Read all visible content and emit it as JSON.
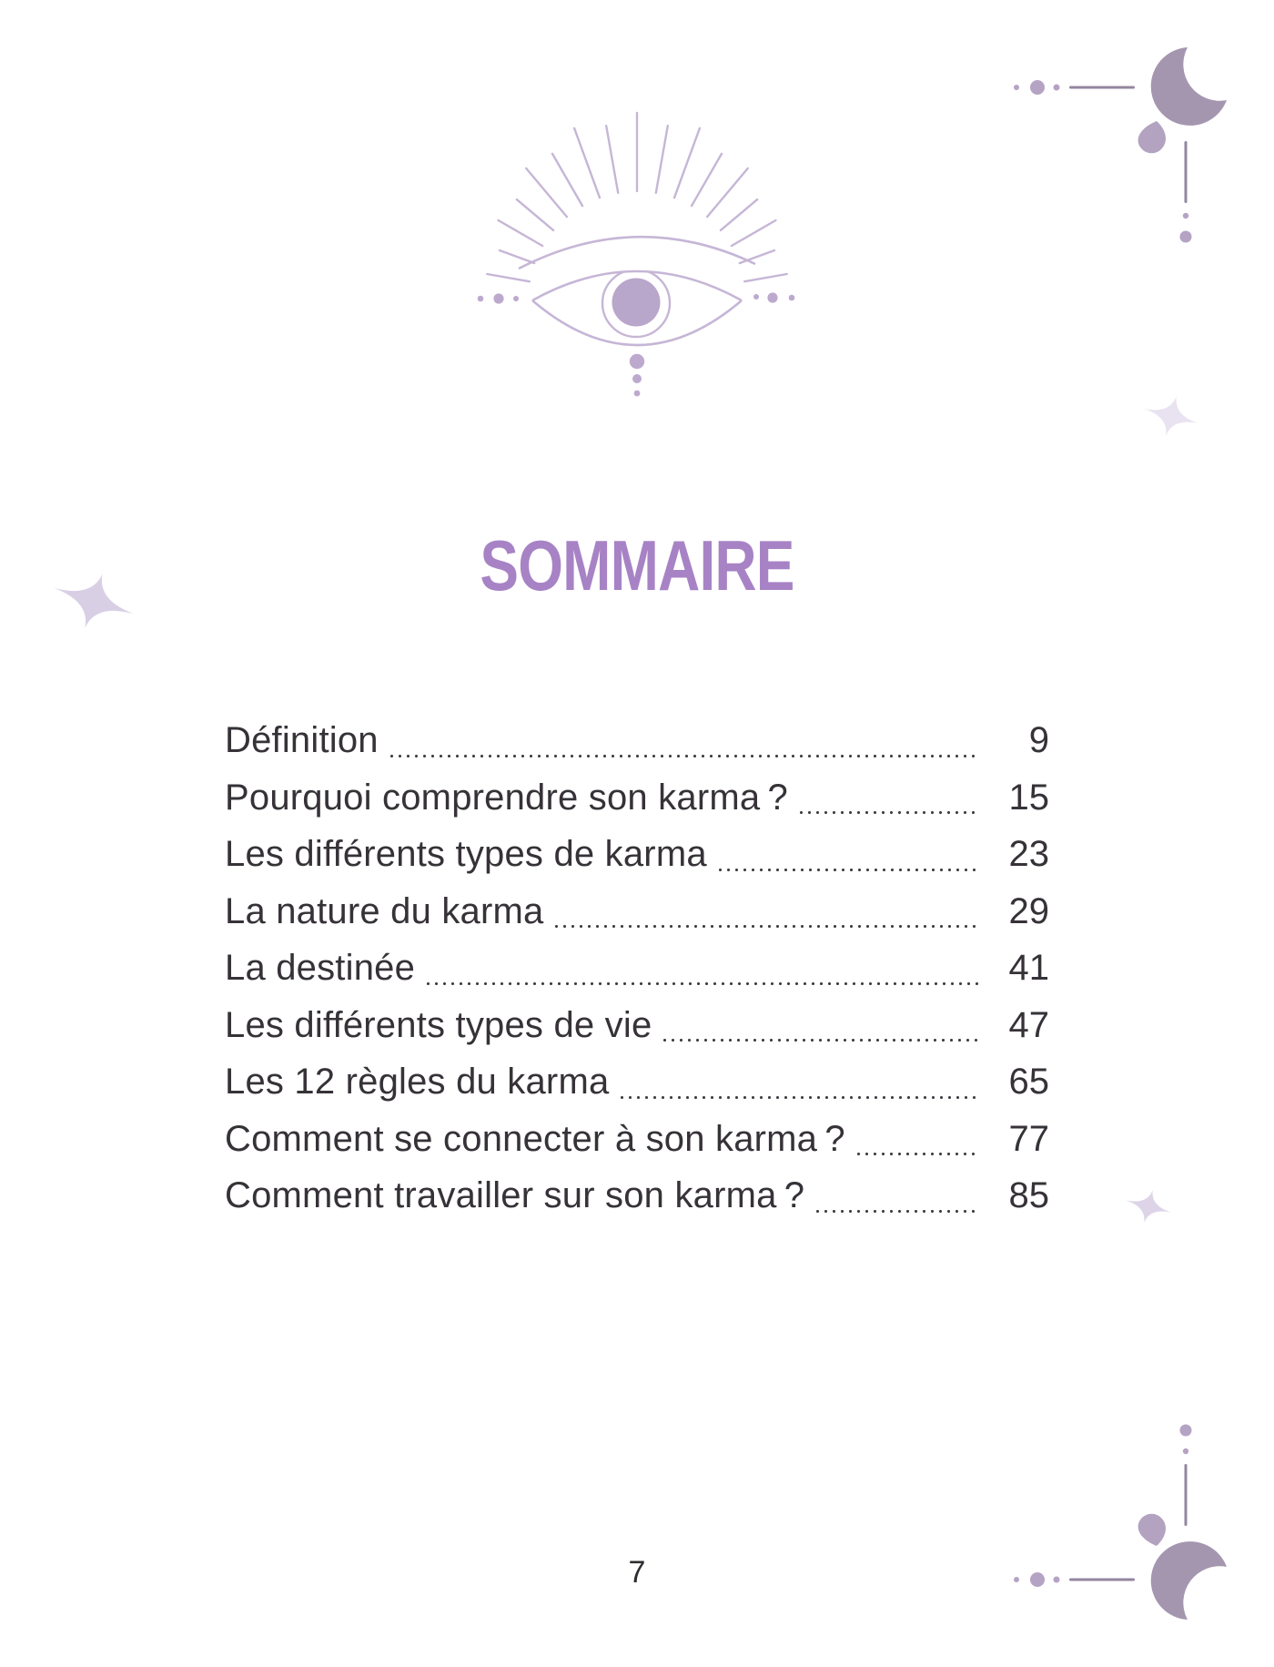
{
  "page": {
    "title": "SOMMAIRE",
    "page_number": "7",
    "colors": {
      "accent_purple": "#a783c5",
      "illustration_lavender": "#c6b6d6",
      "ornament_purple": "#a596b0",
      "text_color": "#363238"
    },
    "icons": {
      "header_illustration": "third-eye-with-rays",
      "corner_ornament": "crescent-moon-with-dots",
      "decorations": "four-point-sparkles"
    }
  },
  "toc": {
    "entries": [
      {
        "label": "Définition",
        "page": "9"
      },
      {
        "label": "Pourquoi comprendre son karma ?",
        "page": "15"
      },
      {
        "label": "Les différents types de karma",
        "page": "23"
      },
      {
        "label": "La nature du karma",
        "page": "29"
      },
      {
        "label": "La destinée",
        "page": "41"
      },
      {
        "label": "Les différents types de vie",
        "page": "47"
      },
      {
        "label": "Les 12 règles du karma",
        "page": "65"
      },
      {
        "label": "Comment se connecter à son karma ?",
        "page": "77"
      },
      {
        "label": "Comment travailler sur son karma ?",
        "page": "85"
      }
    ]
  }
}
